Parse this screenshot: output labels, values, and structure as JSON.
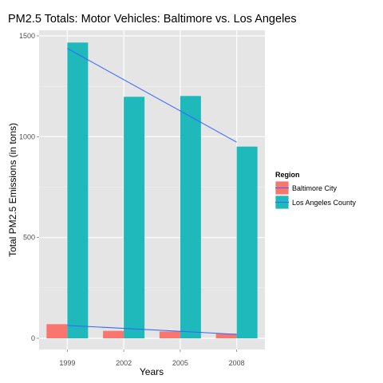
{
  "chart_data": {
    "type": "bar",
    "title": "PM2.5 Totals: Motor Vehicles: Baltimore vs. Los Angeles",
    "xlabel": "Years",
    "ylabel": "Total PM2.5 Emissions (in tons)",
    "categories": [
      "1999",
      "2002",
      "2005",
      "2008"
    ],
    "ylim": [
      0,
      1640
    ],
    "yticks": [
      0,
      500,
      1000,
      1500
    ],
    "legend_title": "Region",
    "legend_position": "right",
    "grid": true,
    "series": [
      {
        "name": "Baltimore City",
        "values": [
          70,
          37,
          34,
          23
        ],
        "color": "#f8766d"
      },
      {
        "name": "Los Angeles County",
        "values": [
          1467,
          1198,
          1202,
          951
        ],
        "color": "#1fb8bb"
      }
    ],
    "trend_lines": [
      {
        "series": "Baltimore City",
        "start": 64,
        "end": 20,
        "color": "#3366ff"
      },
      {
        "series": "Los Angeles County",
        "start": 1438,
        "end": 973,
        "color": "#3366ff"
      }
    ]
  }
}
